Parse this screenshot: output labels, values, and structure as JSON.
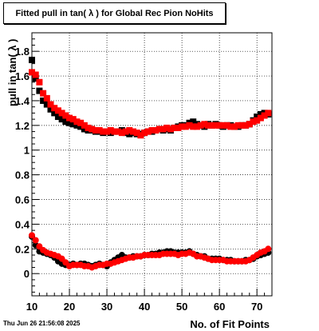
{
  "title": "Fitted pull in tan( λ ) for Global Rec Pion NoHits",
  "timestamp": "Thu Jun 26 21:56:08 2025",
  "chart_data": {
    "type": "scatter",
    "title": "Fitted pull in tan( λ ) for Global Rec Pion NoHits",
    "xlabel": "No. of Fit Points",
    "ylabel": "pull in tan( λ )",
    "xlim": [
      10,
      74
    ],
    "ylim": [
      -0.18,
      1.95
    ],
    "xticks": [
      10,
      20,
      30,
      40,
      50,
      60,
      70
    ],
    "yticks": [
      0,
      0.2,
      0.4,
      0.6,
      0.8,
      1,
      1.2,
      1.4,
      1.6,
      1.8
    ],
    "grid": true,
    "series": [
      {
        "color": "#000000",
        "marker": "square",
        "x": [
          10,
          11,
          12,
          13,
          14,
          15,
          16,
          17,
          18,
          19,
          20,
          21,
          22,
          23,
          24,
          25,
          26,
          27,
          28,
          29,
          30,
          31,
          32,
          33,
          34,
          35,
          36,
          37,
          38,
          39,
          40,
          41,
          42,
          43,
          44,
          45,
          46,
          47,
          48,
          49,
          50,
          51,
          52,
          53,
          54,
          55,
          56,
          57,
          58,
          59,
          60,
          61,
          62,
          63,
          64,
          65,
          66,
          67,
          68,
          69,
          70,
          71,
          72,
          73
        ],
        "values": [
          1.73,
          1.58,
          1.48,
          1.4,
          1.37,
          1.33,
          1.3,
          1.27,
          1.25,
          1.23,
          1.22,
          1.21,
          1.2,
          1.19,
          1.17,
          1.16,
          1.16,
          1.15,
          1.15,
          1.14,
          1.15,
          1.14,
          1.15,
          1.15,
          1.16,
          1.14,
          1.13,
          1.14,
          1.13,
          1.13,
          1.14,
          1.15,
          1.15,
          1.16,
          1.17,
          1.16,
          1.17,
          1.16,
          1.18,
          1.19,
          1.2,
          1.2,
          1.22,
          1.23,
          1.21,
          1.2,
          1.19,
          1.21,
          1.2,
          1.21,
          1.2,
          1.19,
          1.2,
          1.2,
          1.19,
          1.19,
          1.2,
          1.2,
          1.21,
          1.24,
          1.27,
          1.29,
          1.3,
          1.29
        ]
      },
      {
        "color": "#ff0000",
        "marker": "square",
        "x": [
          10,
          11,
          12,
          13,
          14,
          15,
          16,
          17,
          18,
          19,
          20,
          21,
          22,
          23,
          24,
          25,
          26,
          27,
          28,
          29,
          30,
          31,
          32,
          33,
          34,
          35,
          36,
          37,
          38,
          39,
          40,
          41,
          42,
          43,
          44,
          45,
          46,
          47,
          48,
          49,
          50,
          51,
          52,
          53,
          54,
          55,
          56,
          57,
          58,
          59,
          60,
          61,
          62,
          63,
          64,
          65,
          66,
          67,
          68,
          69,
          70,
          71,
          72,
          73
        ],
        "values": [
          1.63,
          1.61,
          1.55,
          1.46,
          1.42,
          1.37,
          1.34,
          1.32,
          1.3,
          1.28,
          1.26,
          1.25,
          1.23,
          1.22,
          1.2,
          1.18,
          1.17,
          1.16,
          1.16,
          1.15,
          1.15,
          1.16,
          1.15,
          1.15,
          1.14,
          1.15,
          1.16,
          1.15,
          1.14,
          1.12,
          1.14,
          1.15,
          1.16,
          1.16,
          1.17,
          1.17,
          1.18,
          1.17,
          1.18,
          1.18,
          1.19,
          1.19,
          1.2,
          1.19,
          1.19,
          1.2,
          1.21,
          1.2,
          1.2,
          1.2,
          1.2,
          1.2,
          1.2,
          1.19,
          1.19,
          1.2,
          1.2,
          1.2,
          1.21,
          1.23,
          1.24,
          1.26,
          1.28,
          1.3
        ]
      },
      {
        "color": "#000000",
        "marker": "circle",
        "x": [
          10,
          11,
          12,
          13,
          14,
          15,
          16,
          17,
          18,
          19,
          20,
          21,
          22,
          23,
          24,
          25,
          26,
          27,
          28,
          29,
          30,
          31,
          32,
          33,
          34,
          35,
          36,
          37,
          38,
          39,
          40,
          41,
          42,
          43,
          44,
          45,
          46,
          47,
          48,
          49,
          50,
          51,
          52,
          53,
          54,
          55,
          56,
          57,
          58,
          59,
          60,
          61,
          62,
          63,
          64,
          65,
          66,
          67,
          68,
          69,
          70,
          71,
          72,
          73
        ],
        "values": [
          0.3,
          0.23,
          0.18,
          0.17,
          0.16,
          0.15,
          0.13,
          0.1,
          0.08,
          0.07,
          0.07,
          0.08,
          0.07,
          0.08,
          0.08,
          0.07,
          0.06,
          0.07,
          0.08,
          0.07,
          0.06,
          0.09,
          0.11,
          0.13,
          0.15,
          0.13,
          0.13,
          0.14,
          0.14,
          0.14,
          0.15,
          0.15,
          0.16,
          0.16,
          0.17,
          0.17,
          0.18,
          0.18,
          0.17,
          0.17,
          0.17,
          0.17,
          0.18,
          0.16,
          0.15,
          0.14,
          0.14,
          0.12,
          0.12,
          0.12,
          0.12,
          0.11,
          0.11,
          0.11,
          0.1,
          0.1,
          0.1,
          0.11,
          0.11,
          0.12,
          0.14,
          0.15,
          0.16,
          0.17
        ]
      },
      {
        "color": "#ff0000",
        "marker": "circle",
        "x": [
          10,
          11,
          12,
          13,
          14,
          15,
          16,
          17,
          18,
          19,
          20,
          21,
          22,
          23,
          24,
          25,
          26,
          27,
          28,
          29,
          30,
          31,
          32,
          33,
          34,
          35,
          36,
          37,
          38,
          39,
          40,
          41,
          42,
          43,
          44,
          45,
          46,
          47,
          48,
          49,
          50,
          51,
          52,
          53,
          54,
          55,
          56,
          57,
          58,
          59,
          60,
          61,
          62,
          63,
          64,
          65,
          66,
          67,
          68,
          69,
          70,
          71,
          72,
          73
        ],
        "values": [
          0.31,
          0.27,
          0.22,
          0.19,
          0.17,
          0.16,
          0.15,
          0.14,
          0.12,
          0.09,
          0.06,
          0.07,
          0.07,
          0.07,
          0.06,
          0.06,
          0.05,
          0.06,
          0.07,
          0.07,
          0.08,
          0.08,
          0.09,
          0.1,
          0.11,
          0.12,
          0.13,
          0.13,
          0.14,
          0.14,
          0.15,
          0.15,
          0.15,
          0.15,
          0.15,
          0.16,
          0.16,
          0.16,
          0.16,
          0.15,
          0.16,
          0.16,
          0.17,
          0.16,
          0.14,
          0.14,
          0.13,
          0.12,
          0.11,
          0.11,
          0.11,
          0.11,
          0.1,
          0.1,
          0.1,
          0.1,
          0.1,
          0.1,
          0.11,
          0.13,
          0.15,
          0.17,
          0.18,
          0.2
        ]
      }
    ]
  }
}
